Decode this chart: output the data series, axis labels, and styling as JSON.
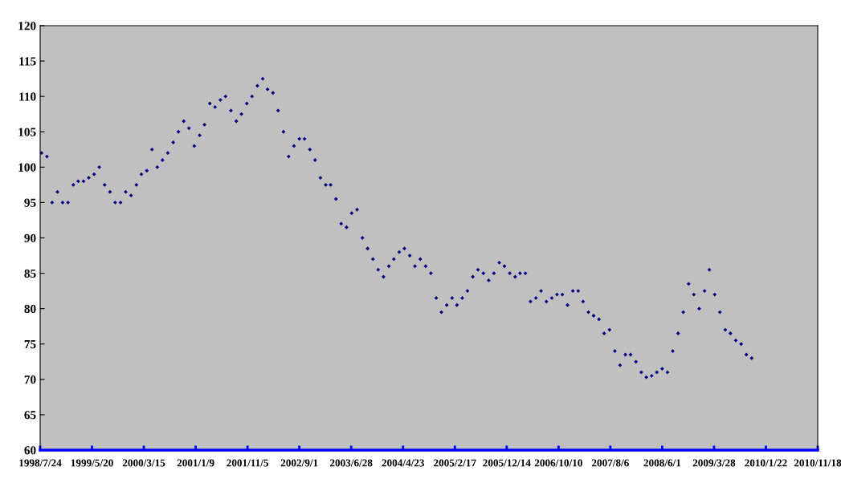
{
  "chart_data": {
    "type": "scatter",
    "marker": "diamond",
    "grid": false,
    "xlim": [
      "1998-07-24",
      "2010-11-18"
    ],
    "xticks": [
      {
        "value": "1998-07-24",
        "label": "1998/7/24"
      },
      {
        "value": "1999-05-20",
        "label": "1999/5/20"
      },
      {
        "value": "2000-03-15",
        "label": "2000/3/15"
      },
      {
        "value": "2001-01-09",
        "label": "2001/1/9"
      },
      {
        "value": "2001-11-05",
        "label": "2001/11/5"
      },
      {
        "value": "2002-09-01",
        "label": "2002/9/1"
      },
      {
        "value": "2003-06-28",
        "label": "2003/6/28"
      },
      {
        "value": "2004-04-23",
        "label": "2004/4/23"
      },
      {
        "value": "2005-02-17",
        "label": "2005/2/17"
      },
      {
        "value": "2005-12-14",
        "label": "2005/12/14"
      },
      {
        "value": "2006-10-10",
        "label": "2006/10/10"
      },
      {
        "value": "2007-08-06",
        "label": "2007/8/6"
      },
      {
        "value": "2008-06-01",
        "label": "2008/6/1"
      },
      {
        "value": "2009-03-28",
        "label": "2009/3/28"
      },
      {
        "value": "2010-01-22",
        "label": "2010/1/22"
      },
      {
        "value": "2010-11-18",
        "label": "2010/11/18"
      }
    ],
    "ylim": [
      60,
      120
    ],
    "yticks": [
      60,
      65,
      70,
      75,
      80,
      85,
      90,
      95,
      100,
      105,
      110,
      115,
      120
    ],
    "x": [
      "1998-08",
      "1998-09",
      "1998-10",
      "1998-11",
      "1998-12",
      "1999-01",
      "1999-02",
      "1999-03",
      "1999-04",
      "1999-05",
      "1999-06",
      "1999-07",
      "1999-08",
      "1999-09",
      "1999-10",
      "1999-11",
      "1999-12",
      "2000-01",
      "2000-02",
      "2000-03",
      "2000-04",
      "2000-05",
      "2000-06",
      "2000-07",
      "2000-08",
      "2000-09",
      "2000-10",
      "2000-11",
      "2000-12",
      "2001-01",
      "2001-02",
      "2001-03",
      "2001-04",
      "2001-05",
      "2001-06",
      "2001-07",
      "2001-08",
      "2001-09",
      "2001-10",
      "2001-11",
      "2001-12",
      "2002-01",
      "2002-02",
      "2002-03",
      "2002-04",
      "2002-05",
      "2002-06",
      "2002-07",
      "2002-08",
      "2002-09",
      "2002-10",
      "2002-11",
      "2002-12",
      "2003-01",
      "2003-02",
      "2003-03",
      "2003-04",
      "2003-05",
      "2003-06",
      "2003-07",
      "2003-08",
      "2003-09",
      "2003-10",
      "2003-11",
      "2003-12",
      "2004-01",
      "2004-02",
      "2004-03",
      "2004-04",
      "2004-05",
      "2004-06",
      "2004-07",
      "2004-08",
      "2004-09",
      "2004-10",
      "2004-11",
      "2004-12",
      "2005-01",
      "2005-02",
      "2005-03",
      "2005-04",
      "2005-05",
      "2005-06",
      "2005-07",
      "2005-08",
      "2005-09",
      "2005-10",
      "2005-11",
      "2005-12",
      "2006-01",
      "2006-02",
      "2006-03",
      "2006-04",
      "2006-05",
      "2006-06",
      "2006-07",
      "2006-08",
      "2006-09",
      "2006-10",
      "2006-11",
      "2006-12",
      "2007-01",
      "2007-02",
      "2007-03",
      "2007-04",
      "2007-05",
      "2007-06",
      "2007-07",
      "2007-08",
      "2007-09",
      "2007-10",
      "2007-11",
      "2007-12",
      "2008-01",
      "2008-02",
      "2008-03",
      "2008-04",
      "2008-05",
      "2008-06",
      "2008-07",
      "2008-08",
      "2008-09",
      "2008-10",
      "2008-11",
      "2008-12",
      "2009-01",
      "2009-02",
      "2009-03",
      "2009-04",
      "2009-05",
      "2009-06",
      "2009-07",
      "2009-08",
      "2009-09",
      "2009-10",
      "2009-11"
    ],
    "series": [
      {
        "color": "#000080",
        "values": [
          102,
          101.5,
          95,
          96.5,
          95,
          95,
          97.5,
          98,
          98,
          98.5,
          99,
          100,
          97.5,
          96.5,
          95,
          95,
          96.5,
          96,
          97.5,
          99,
          99.5,
          102.5,
          100,
          101,
          102,
          103.5,
          105,
          106.5,
          105.5,
          103,
          104.5,
          106,
          109,
          108.5,
          109.5,
          110,
          108,
          106.5,
          107.5,
          109,
          110,
          111.5,
          112.5,
          111,
          110.5,
          108,
          105,
          101.5,
          103,
          104,
          104,
          102.5,
          101,
          98.5,
          97.5,
          97.5,
          95.5,
          92,
          91.5,
          93.5,
          94,
          90,
          88.5,
          87,
          85.5,
          84.5,
          86,
          87,
          88,
          88.5,
          87.5,
          86,
          87,
          86,
          85,
          81.5,
          79.5,
          80.5,
          81.5,
          80.5,
          81.5,
          82.5,
          84.5,
          85.5,
          85,
          84,
          85,
          86.5,
          86,
          85,
          84.5,
          85,
          85,
          81,
          81.5,
          82.5,
          81,
          81.5,
          82,
          82,
          80.5,
          82.5,
          82.5,
          81,
          79.5,
          79,
          78.5,
          76.5,
          77,
          74,
          72,
          73.5,
          73.5,
          72.5,
          71,
          70.3,
          70.5,
          71,
          71.5,
          71,
          74,
          76.5,
          79.5,
          83.5,
          82,
          80,
          82.5,
          85.5,
          82,
          79.5,
          77,
          76.5,
          75.5,
          75,
          73.5,
          73
        ]
      }
    ]
  }
}
